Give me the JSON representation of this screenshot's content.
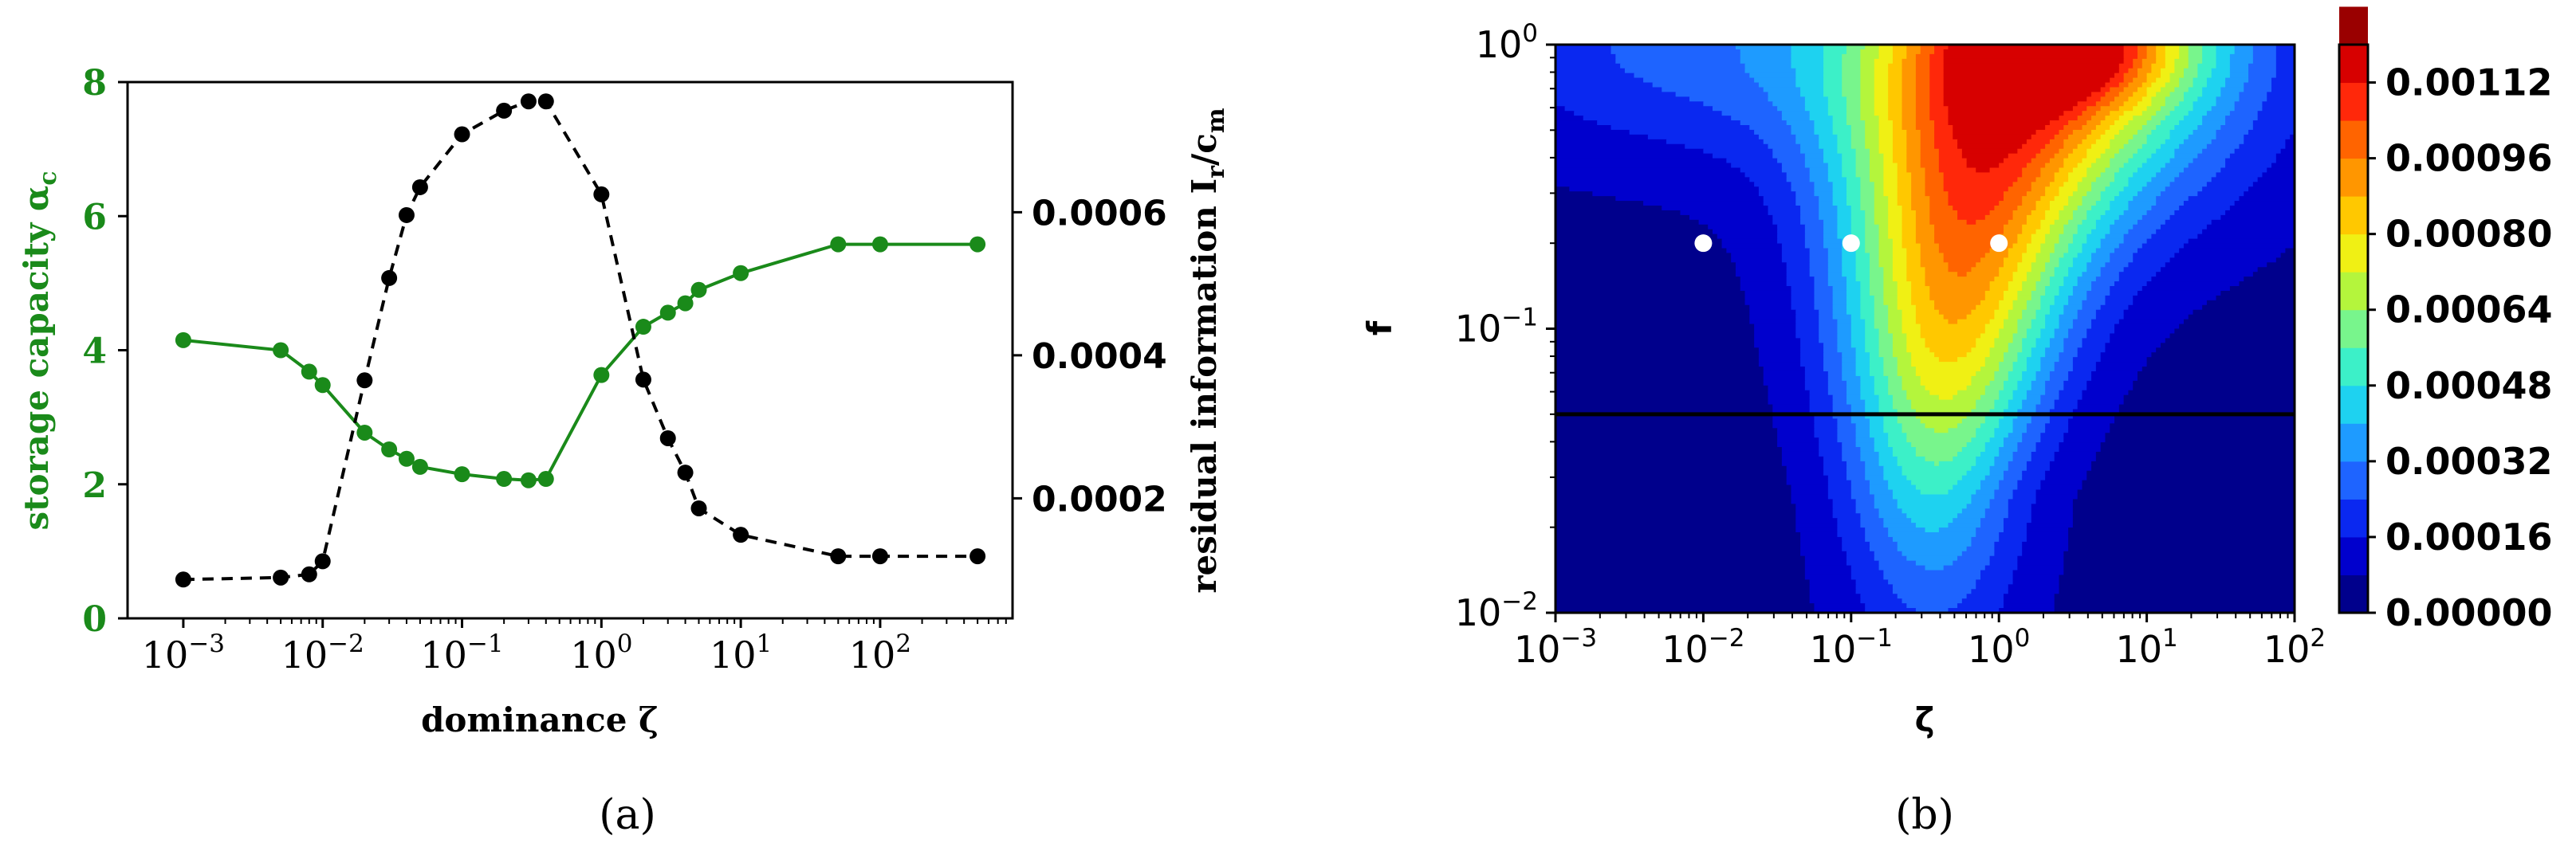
{
  "panel_labels": {
    "a": "(a)",
    "b": "(b)"
  },
  "colors": {
    "green": "#1a8a1a",
    "black": "#000000",
    "white": "#ffffff"
  },
  "chart_data": [
    {
      "id": "a",
      "type": "line",
      "xscale": "log",
      "xlim_exp": [
        -3.4,
        2.95
      ],
      "xlabel": "dominance ζ",
      "left_axis": {
        "label": "storage capacity α_c",
        "label_main": "storage capacity α",
        "label_sub": "c",
        "ylim": [
          0,
          8
        ],
        "ticks": [
          0,
          2,
          4,
          6,
          8
        ],
        "tick_labels": [
          "0",
          "2",
          "4",
          "6",
          "8"
        ],
        "color": "#1a8a1a"
      },
      "right_axis": {
        "label": "residual information I_r/c_m",
        "label_main": "residual information I",
        "label_sub1": "r",
        "label_mid": "/c",
        "label_sub2": "m",
        "ylim": [
          3.22e-05,
          0.000782
        ],
        "ticks": [
          0.0002,
          0.0004,
          0.0006
        ],
        "tick_labels": [
          "0.0002",
          "0.0004",
          "0.0006"
        ],
        "color": "#000000"
      },
      "xticks": [
        {
          "base": "10",
          "exp": "−3"
        },
        {
          "base": "10",
          "exp": "−2"
        },
        {
          "base": "10",
          "exp": "−1"
        },
        {
          "base": "10",
          "exp": "0"
        },
        {
          "base": "10",
          "exp": "1"
        },
        {
          "base": "10",
          "exp": "2"
        }
      ],
      "xtick_values": [
        0.001,
        0.01,
        0.1,
        1,
        10,
        100
      ],
      "series": [
        {
          "axis": "left",
          "style": "solid",
          "color": "#1a8a1a",
          "x": [
            0.001,
            0.005,
            0.008,
            0.01,
            0.02,
            0.03,
            0.04,
            0.05,
            0.1,
            0.2,
            0.3,
            0.4,
            1,
            2,
            3,
            4,
            5,
            10,
            50,
            100,
            500
          ],
          "y": [
            4.15,
            4.0,
            3.68,
            3.48,
            2.77,
            2.52,
            2.38,
            2.26,
            2.15,
            2.08,
            2.06,
            2.08,
            3.63,
            4.35,
            4.56,
            4.7,
            4.9,
            5.15,
            5.58,
            5.58,
            5.58
          ]
        },
        {
          "axis": "right",
          "style": "dashed",
          "color": "#000000",
          "x": [
            0.001,
            0.005,
            0.008,
            0.01,
            0.02,
            0.03,
            0.04,
            0.05,
            0.1,
            0.2,
            0.3,
            0.4,
            1,
            2,
            3,
            4,
            5,
            10,
            50,
            100,
            500
          ],
          "y": [
            8.65e-05,
            8.92e-05,
            9.37e-05,
            0.000112,
            0.000365,
            0.000508,
            0.000596,
            0.000635,
            0.000709,
            0.000742,
            0.000755,
            0.000755,
            0.000625,
            0.000366,
            0.000284,
            0.000236,
            0.000186,
            0.000149,
            0.000119,
            0.000119,
            0.000119
          ]
        }
      ]
    },
    {
      "id": "b",
      "type": "heatmap",
      "subtype": "filled contour",
      "xscale": "log",
      "yscale": "log",
      "xlabel": "ζ",
      "ylabel": "f",
      "xlim": [
        0.001,
        100
      ],
      "ylim": [
        0.01,
        1
      ],
      "xticks": [
        {
          "base": "10",
          "exp": "−3"
        },
        {
          "base": "10",
          "exp": "−2"
        },
        {
          "base": "10",
          "exp": "−1"
        },
        {
          "base": "10",
          "exp": "0"
        },
        {
          "base": "10",
          "exp": "1"
        },
        {
          "base": "10",
          "exp": "2"
        }
      ],
      "yticks": [
        {
          "base": "10",
          "exp": "−2"
        },
        {
          "base": "10",
          "exp": "−1"
        },
        {
          "base": "10",
          "exp": "0"
        }
      ],
      "colorbar": {
        "levels": [
          0,
          8e-05,
          0.00016,
          0.00024,
          0.00032,
          0.0004,
          0.00048,
          0.00056,
          0.00064,
          0.00072,
          0.0008,
          0.00088,
          0.00096,
          0.00104,
          0.00112,
          0.0012
        ],
        "colors": [
          "#00008c",
          "#0000cd",
          "#0a28f0",
          "#1e64ff",
          "#1e9bff",
          "#1ed2f0",
          "#3cf0c8",
          "#78f58c",
          "#b4f53c",
          "#f0f014",
          "#ffc800",
          "#ff9600",
          "#ff6400",
          "#ff280a",
          "#d70000",
          "#9a0000"
        ],
        "tick_labels": [
          "0.00000",
          "0.00016",
          "0.00032",
          "0.00048",
          "0.00064",
          "0.00080",
          "0.00096",
          "0.00112"
        ]
      },
      "horizontal_line_f": 0.05,
      "markers": [
        {
          "zeta": 0.01,
          "f": 0.2
        },
        {
          "zeta": 0.1,
          "f": 0.2
        },
        {
          "zeta": 1,
          "f": 0.2
        }
      ]
    }
  ]
}
